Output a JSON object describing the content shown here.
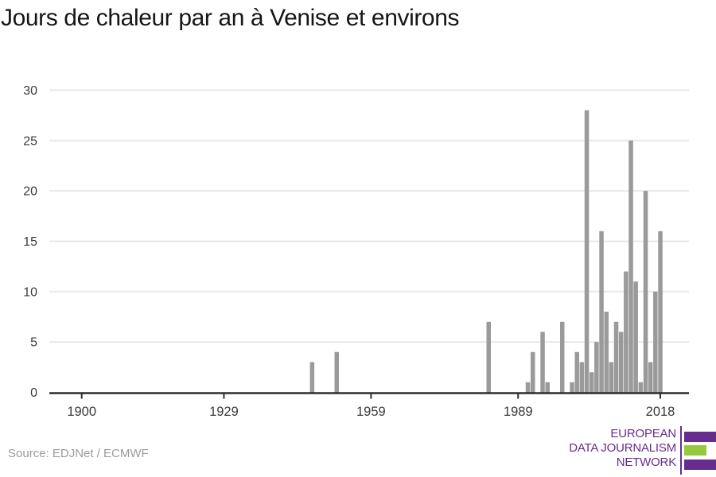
{
  "title": "Jours de chaleur par an à Venise et environs",
  "source": "Source: EDJNet / ECMWF",
  "logo": {
    "line1": "EUROPEAN",
    "line2": "DATA JOURNALISM",
    "line3": "NETWORK",
    "purple": "#662d8f",
    "green": "#95c93d"
  },
  "chart_data": {
    "type": "bar",
    "title": "Jours de chaleur par an à Venise et environs",
    "xlabel": "",
    "ylabel": "",
    "x": [
      1947,
      1952,
      1983,
      1991,
      1992,
      1994,
      1995,
      1998,
      2000,
      2001,
      2002,
      2003,
      2004,
      2005,
      2006,
      2007,
      2008,
      2009,
      2010,
      2011,
      2012,
      2013,
      2014,
      2015,
      2016,
      2017,
      2018
    ],
    "values": [
      3,
      4,
      7,
      1,
      4,
      6,
      1,
      7,
      1,
      4,
      3,
      28,
      2,
      5,
      16,
      8,
      3,
      7,
      6,
      12,
      25,
      11,
      1,
      20,
      3,
      10,
      16
    ],
    "xticks": [
      "1900",
      "1929",
      "1959",
      "1989",
      "2018"
    ],
    "yticks": [
      0,
      5,
      10,
      15,
      20,
      25,
      30
    ],
    "xlim": [
      1893,
      2024
    ],
    "ylim": [
      0,
      30
    ],
    "grid": "horizontal",
    "legend": false,
    "bar_color": "#9a9a9a",
    "grid_color": "#e8e8e8",
    "axis_color": "#2d2d2d",
    "tick_label_color": "#3a3a3a"
  }
}
